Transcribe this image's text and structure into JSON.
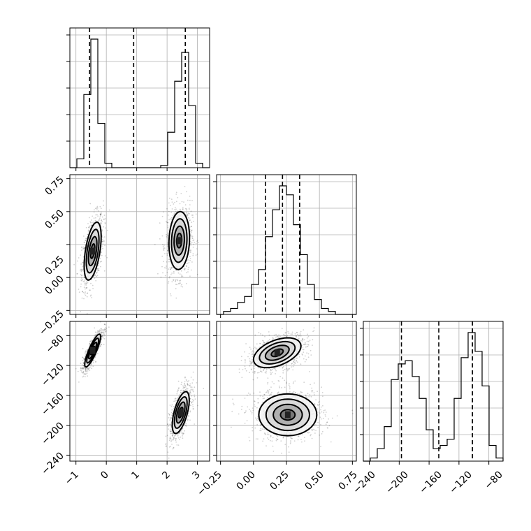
{
  "chart_data": {
    "type": "corner",
    "parameters": [
      {
        "ticks": [
          -1,
          0,
          1,
          2,
          3
        ],
        "range": [
          -1.2,
          3.4
        ]
      },
      {
        "ticks": [
          -0.25,
          0.0,
          0.25,
          0.5,
          0.75
        ],
        "range": [
          -0.28,
          0.78
        ]
      },
      {
        "ticks": [
          -240,
          -200,
          -160,
          -120,
          -80
        ],
        "range": [
          -248,
          -61
        ]
      }
    ],
    "tick_labels": {
      "p0": [
        "−1",
        "0",
        "1",
        "2",
        "3"
      ],
      "p1": [
        "−0.25",
        "0.00",
        "0.25",
        "0.50",
        "0.75"
      ],
      "p2": [
        "−240",
        "−200",
        "−160",
        "−120",
        "−80"
      ]
    },
    "quantiles": {
      "p0": [
        -0.55,
        0.9,
        2.6
      ],
      "p1": [
        0.09,
        0.22,
        0.35
      ],
      "p2": [
        -197,
        -147,
        -102
      ]
    },
    "histograms": {
      "p0": {
        "bins": [
          -1.2,
          -0.97,
          -0.74,
          -0.51,
          -0.28,
          -0.05,
          0.18,
          0.41,
          0.64,
          0.87,
          1.1,
          1.33,
          1.56,
          1.79,
          2.02,
          2.25,
          2.48,
          2.71,
          2.94,
          3.17,
          3.4
        ],
        "counts": [
          0,
          4,
          33,
          58,
          20,
          2,
          0,
          0,
          0,
          0,
          0,
          0,
          0,
          1,
          16,
          39,
          52,
          28,
          2,
          0
        ]
      },
      "p1": {
        "bins": [
          -0.28,
          -0.227,
          -0.174,
          -0.121,
          -0.068,
          -0.015,
          0.038,
          0.091,
          0.144,
          0.197,
          0.25,
          0.303,
          0.356,
          0.409,
          0.462,
          0.515,
          0.568,
          0.621,
          0.674,
          0.727,
          0.78
        ],
        "counts": [
          0,
          1,
          2,
          4,
          6,
          10,
          15,
          26,
          35,
          43,
          40,
          30,
          20,
          10,
          5,
          2,
          1,
          0,
          0,
          0
        ]
      },
      "p2": {
        "bins": [
          -248,
          -238.65,
          -229.3,
          -219.95,
          -210.6,
          -201.25,
          -191.9,
          -182.55,
          -173.2,
          -163.85,
          -154.5,
          -145.15,
          -135.8,
          -126.45,
          -117.1,
          -107.75,
          -98.4,
          -89.05,
          -79.7,
          -70.35,
          -61
        ],
        "counts": [
          0,
          1,
          4,
          11,
          26,
          31,
          32,
          27,
          20,
          10,
          4,
          5,
          7,
          20,
          33,
          41,
          35,
          24,
          5,
          1
        ]
      }
    },
    "clusters_2d": {
      "p0_p1": [
        {
          "cx": -0.45,
          "cy": 0.2,
          "sx": 0.14,
          "sy": 0.11,
          "rho": 0.5,
          "weight": 0.5
        },
        {
          "cx": 2.4,
          "cy": 0.28,
          "sx": 0.17,
          "sy": 0.11,
          "rho": 0.1,
          "weight": 0.5
        }
      ],
      "p0_p2": [
        {
          "cx": -0.45,
          "cy": -100,
          "sx": 0.13,
          "sy": 11,
          "rho": 0.85,
          "weight": 0.5
        },
        {
          "cx": 2.45,
          "cy": -183,
          "sx": 0.14,
          "sy": 14,
          "rho": 0.6,
          "weight": 0.5
        }
      ],
      "p1_p2": [
        {
          "cx": 0.18,
          "cy": -103,
          "sx": 0.09,
          "sy": 10,
          "rho": 0.45,
          "weight": 0.5
        },
        {
          "cx": 0.26,
          "cy": -186,
          "sx": 0.11,
          "sy": 14,
          "rho": 0.0,
          "weight": 0.5
        }
      ]
    },
    "contour_levels_sigma": [
      0.5,
      1.0,
      1.5,
      2.0
    ],
    "grid": true
  }
}
